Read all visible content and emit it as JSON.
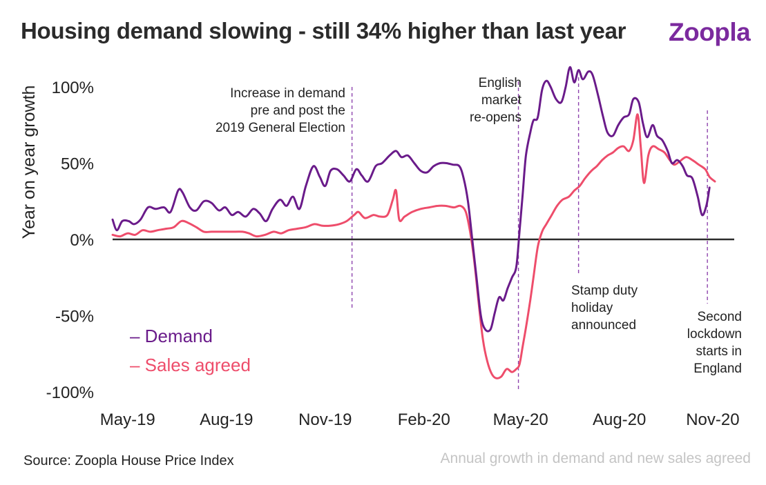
{
  "header": {
    "title": "Housing demand slowing - still 34% higher than last year",
    "brand": "Zoopla"
  },
  "footer": {
    "source": "Source: Zoopla House Price Index",
    "subtitle": "Annual growth in demand and new sales agreed"
  },
  "colors": {
    "demand": "#6a1b8a",
    "sales": "#ee4d6b",
    "zero_line": "#2b2b2b",
    "event_line": "#8e44ad",
    "brand": "#7b2a9e"
  },
  "annotations": [
    {
      "id": "election",
      "text": "Increase in demand\npre and post the\n2019 General Election",
      "x": "2019-12-10"
    },
    {
      "id": "reopen",
      "text": "English\nmarket\nre-opens",
      "x": "2020-05-13"
    },
    {
      "id": "stamp",
      "text": "Stamp duty\nholiday\nannounced",
      "x": "2020-07-08"
    },
    {
      "id": "lockdown",
      "text": "Second\nlockdown\nstarts in\nEngland",
      "x": "2020-11-05"
    }
  ],
  "chart_data": {
    "type": "line",
    "title": "Housing demand slowing - still 34% higher than last year",
    "ylabel": "Year on year growth",
    "xlabel": "",
    "xlim": [
      "2019-05-01",
      "2020-11-30"
    ],
    "ylim": [
      -100,
      100
    ],
    "x_ticks": [
      "May-19",
      "Aug-19",
      "Nov-19",
      "Feb-20",
      "May-20",
      "Aug-20",
      "Nov-20"
    ],
    "y_ticks": [
      "100%",
      "50%",
      "0%",
      "-50%",
      "-100%"
    ],
    "y_tick_values": [
      100,
      50,
      0,
      -50,
      -100
    ],
    "legend_position": "bottom-left",
    "series": [
      {
        "name": "Demand",
        "points": [
          [
            "2019-05-01",
            13
          ],
          [
            "2019-05-05",
            6
          ],
          [
            "2019-05-10",
            12
          ],
          [
            "2019-05-16",
            12
          ],
          [
            "2019-05-21",
            10
          ],
          [
            "2019-05-27",
            13
          ],
          [
            "2019-06-03",
            21
          ],
          [
            "2019-06-10",
            20
          ],
          [
            "2019-06-18",
            21
          ],
          [
            "2019-06-24",
            18
          ],
          [
            "2019-07-01",
            32
          ],
          [
            "2019-07-05",
            31
          ],
          [
            "2019-07-12",
            21
          ],
          [
            "2019-07-18",
            19
          ],
          [
            "2019-07-25",
            25
          ],
          [
            "2019-08-01",
            24
          ],
          [
            "2019-08-08",
            19
          ],
          [
            "2019-08-14",
            21
          ],
          [
            "2019-08-20",
            16
          ],
          [
            "2019-08-26",
            18
          ],
          [
            "2019-09-02",
            15
          ],
          [
            "2019-09-09",
            20
          ],
          [
            "2019-09-15",
            17
          ],
          [
            "2019-09-21",
            12
          ],
          [
            "2019-09-27",
            20
          ],
          [
            "2019-10-04",
            26
          ],
          [
            "2019-10-10",
            22
          ],
          [
            "2019-10-16",
            28
          ],
          [
            "2019-10-22",
            20
          ],
          [
            "2019-10-28",
            35
          ],
          [
            "2019-11-04",
            48
          ],
          [
            "2019-11-10",
            41
          ],
          [
            "2019-11-15",
            35
          ],
          [
            "2019-11-20",
            45
          ],
          [
            "2019-11-26",
            46
          ],
          [
            "2019-12-02",
            42
          ],
          [
            "2019-12-08",
            38
          ],
          [
            "2019-12-14",
            46
          ],
          [
            "2019-12-19",
            42
          ],
          [
            "2019-12-25",
            38
          ],
          [
            "2020-01-01",
            48
          ],
          [
            "2020-01-07",
            50
          ],
          [
            "2020-01-14",
            55
          ],
          [
            "2020-01-20",
            58
          ],
          [
            "2020-01-25",
            54
          ],
          [
            "2020-01-31",
            55
          ],
          [
            "2020-02-06",
            50
          ],
          [
            "2020-02-12",
            45
          ],
          [
            "2020-02-18",
            44
          ],
          [
            "2020-02-24",
            48
          ],
          [
            "2020-03-01",
            50
          ],
          [
            "2020-03-07",
            50
          ],
          [
            "2020-03-13",
            49
          ],
          [
            "2020-03-19",
            48
          ],
          [
            "2020-03-23",
            40
          ],
          [
            "2020-03-27",
            25
          ],
          [
            "2020-03-31",
            0
          ],
          [
            "2020-04-04",
            -25
          ],
          [
            "2020-04-08",
            -50
          ],
          [
            "2020-04-12",
            -59
          ],
          [
            "2020-04-17",
            -59
          ],
          [
            "2020-04-21",
            -48
          ],
          [
            "2020-04-25",
            -38
          ],
          [
            "2020-04-29",
            -40
          ],
          [
            "2020-05-03",
            -32
          ],
          [
            "2020-05-07",
            -25
          ],
          [
            "2020-05-11",
            -18
          ],
          [
            "2020-05-14",
            5
          ],
          [
            "2020-05-17",
            30
          ],
          [
            "2020-05-20",
            55
          ],
          [
            "2020-05-24",
            70
          ],
          [
            "2020-05-27",
            78
          ],
          [
            "2020-05-31",
            80
          ],
          [
            "2020-06-04",
            98
          ],
          [
            "2020-06-08",
            104
          ],
          [
            "2020-06-12",
            100
          ],
          [
            "2020-06-17",
            92
          ],
          [
            "2020-06-22",
            90
          ],
          [
            "2020-06-26",
            100
          ],
          [
            "2020-06-30",
            113
          ],
          [
            "2020-07-04",
            103
          ],
          [
            "2020-07-08",
            111
          ],
          [
            "2020-07-12",
            105
          ],
          [
            "2020-07-17",
            110
          ],
          [
            "2020-07-21",
            108
          ],
          [
            "2020-07-26",
            95
          ],
          [
            "2020-07-31",
            80
          ],
          [
            "2020-08-04",
            70
          ],
          [
            "2020-08-09",
            68
          ],
          [
            "2020-08-14",
            75
          ],
          [
            "2020-08-19",
            80
          ],
          [
            "2020-08-24",
            82
          ],
          [
            "2020-08-28",
            92
          ],
          [
            "2020-09-02",
            90
          ],
          [
            "2020-09-06",
            76
          ],
          [
            "2020-09-10",
            67
          ],
          [
            "2020-09-15",
            75
          ],
          [
            "2020-09-19",
            68
          ],
          [
            "2020-09-24",
            65
          ],
          [
            "2020-09-29",
            58
          ],
          [
            "2020-10-03",
            50
          ],
          [
            "2020-10-08",
            52
          ],
          [
            "2020-10-13",
            48
          ],
          [
            "2020-10-17",
            42
          ],
          [
            "2020-10-22",
            40
          ],
          [
            "2020-10-27",
            28
          ],
          [
            "2020-10-31",
            16
          ],
          [
            "2020-11-04",
            22
          ],
          [
            "2020-11-07",
            34
          ]
        ]
      },
      {
        "name": "Sales agreed",
        "points": [
          [
            "2019-05-01",
            3
          ],
          [
            "2019-05-08",
            2
          ],
          [
            "2019-05-15",
            4
          ],
          [
            "2019-05-22",
            3
          ],
          [
            "2019-05-29",
            6
          ],
          [
            "2019-06-05",
            5
          ],
          [
            "2019-06-12",
            6
          ],
          [
            "2019-06-20",
            7
          ],
          [
            "2019-06-27",
            8
          ],
          [
            "2019-07-04",
            12
          ],
          [
            "2019-07-10",
            11
          ],
          [
            "2019-07-18",
            8
          ],
          [
            "2019-07-25",
            5
          ],
          [
            "2019-08-01",
            5
          ],
          [
            "2019-08-10",
            5
          ],
          [
            "2019-08-20",
            5
          ],
          [
            "2019-08-30",
            5
          ],
          [
            "2019-09-05",
            4
          ],
          [
            "2019-09-12",
            2
          ],
          [
            "2019-09-20",
            3
          ],
          [
            "2019-09-28",
            5
          ],
          [
            "2019-10-05",
            4
          ],
          [
            "2019-10-12",
            6
          ],
          [
            "2019-10-20",
            7
          ],
          [
            "2019-10-28",
            8
          ],
          [
            "2019-11-05",
            10
          ],
          [
            "2019-11-12",
            9
          ],
          [
            "2019-11-20",
            9
          ],
          [
            "2019-11-28",
            10
          ],
          [
            "2019-12-05",
            12
          ],
          [
            "2019-12-12",
            16
          ],
          [
            "2019-12-16",
            18
          ],
          [
            "2019-12-22",
            14
          ],
          [
            "2019-12-30",
            16
          ],
          [
            "2020-01-05",
            15
          ],
          [
            "2020-01-12",
            16
          ],
          [
            "2020-01-17",
            26
          ],
          [
            "2020-01-20",
            32
          ],
          [
            "2020-01-23",
            13
          ],
          [
            "2020-01-28",
            15
          ],
          [
            "2020-02-04",
            18
          ],
          [
            "2020-02-12",
            20
          ],
          [
            "2020-02-20",
            21
          ],
          [
            "2020-02-28",
            22
          ],
          [
            "2020-03-06",
            22
          ],
          [
            "2020-03-14",
            21
          ],
          [
            "2020-03-20",
            22
          ],
          [
            "2020-03-25",
            18
          ],
          [
            "2020-03-29",
            5
          ],
          [
            "2020-04-02",
            -15
          ],
          [
            "2020-04-06",
            -42
          ],
          [
            "2020-04-10",
            -66
          ],
          [
            "2020-04-14",
            -80
          ],
          [
            "2020-04-18",
            -88
          ],
          [
            "2020-04-22",
            -91
          ],
          [
            "2020-04-27",
            -90
          ],
          [
            "2020-05-02",
            -85
          ],
          [
            "2020-05-07",
            -87
          ],
          [
            "2020-05-11",
            -85
          ],
          [
            "2020-05-14",
            -82
          ],
          [
            "2020-05-17",
            -70
          ],
          [
            "2020-05-20",
            -58
          ],
          [
            "2020-05-24",
            -40
          ],
          [
            "2020-05-27",
            -25
          ],
          [
            "2020-05-31",
            -5
          ],
          [
            "2020-06-04",
            5
          ],
          [
            "2020-06-08",
            10
          ],
          [
            "2020-06-13",
            16
          ],
          [
            "2020-06-18",
            22
          ],
          [
            "2020-06-23",
            26
          ],
          [
            "2020-06-29",
            28
          ],
          [
            "2020-07-04",
            32
          ],
          [
            "2020-07-09",
            35
          ],
          [
            "2020-07-14",
            40
          ],
          [
            "2020-07-20",
            45
          ],
          [
            "2020-07-25",
            48
          ],
          [
            "2020-07-30",
            52
          ],
          [
            "2020-08-04",
            55
          ],
          [
            "2020-08-09",
            57
          ],
          [
            "2020-08-14",
            60
          ],
          [
            "2020-08-19",
            61
          ],
          [
            "2020-08-24",
            58
          ],
          [
            "2020-08-28",
            65
          ],
          [
            "2020-09-01",
            82
          ],
          [
            "2020-09-04",
            60
          ],
          [
            "2020-09-07",
            37
          ],
          [
            "2020-09-11",
            55
          ],
          [
            "2020-09-15",
            61
          ],
          [
            "2020-09-21",
            59
          ],
          [
            "2020-09-26",
            57
          ],
          [
            "2020-10-01",
            52
          ],
          [
            "2020-10-05",
            49
          ],
          [
            "2020-10-10",
            51
          ],
          [
            "2020-10-16",
            54
          ],
          [
            "2020-10-22",
            52
          ],
          [
            "2020-10-28",
            49
          ],
          [
            "2020-11-03",
            46
          ],
          [
            "2020-11-07",
            41
          ],
          [
            "2020-11-12",
            38
          ]
        ]
      }
    ]
  }
}
